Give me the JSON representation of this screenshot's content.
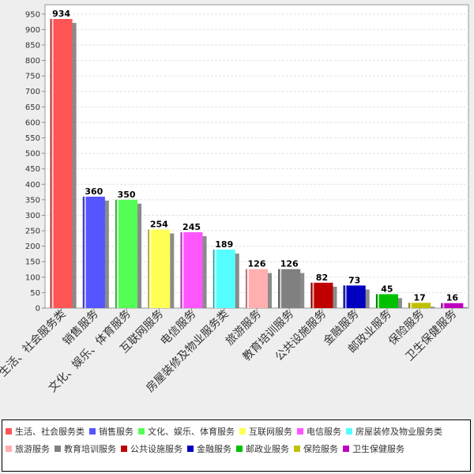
{
  "chart_data": {
    "type": "bar",
    "categories": [
      "生活、社会服务类",
      "销售服务",
      "文化、娱乐、体育服务",
      "互联网服务",
      "电信服务",
      "房屋装修及物业服务类",
      "旅游服务",
      "教育培训服务",
      "公共设施服务",
      "金融服务",
      "邮政业服务",
      "保险服务",
      "卫生保健服务"
    ],
    "values": [
      934,
      360,
      350,
      254,
      245,
      189,
      126,
      126,
      82,
      73,
      45,
      17,
      16
    ],
    "colors": [
      "#ff5555",
      "#5555ff",
      "#55ff55",
      "#ffff55",
      "#ff55ff",
      "#55ffff",
      "#ffafaf",
      "#808080",
      "#c00000",
      "#0000c0",
      "#00c000",
      "#c0c000",
      "#c000c0"
    ],
    "ylim": [
      0,
      980
    ],
    "yticks": [
      0,
      50,
      100,
      150,
      200,
      250,
      300,
      350,
      400,
      450,
      500,
      550,
      600,
      650,
      700,
      750,
      800,
      850,
      900,
      950
    ],
    "grid": true,
    "legend_position": "bottom"
  }
}
